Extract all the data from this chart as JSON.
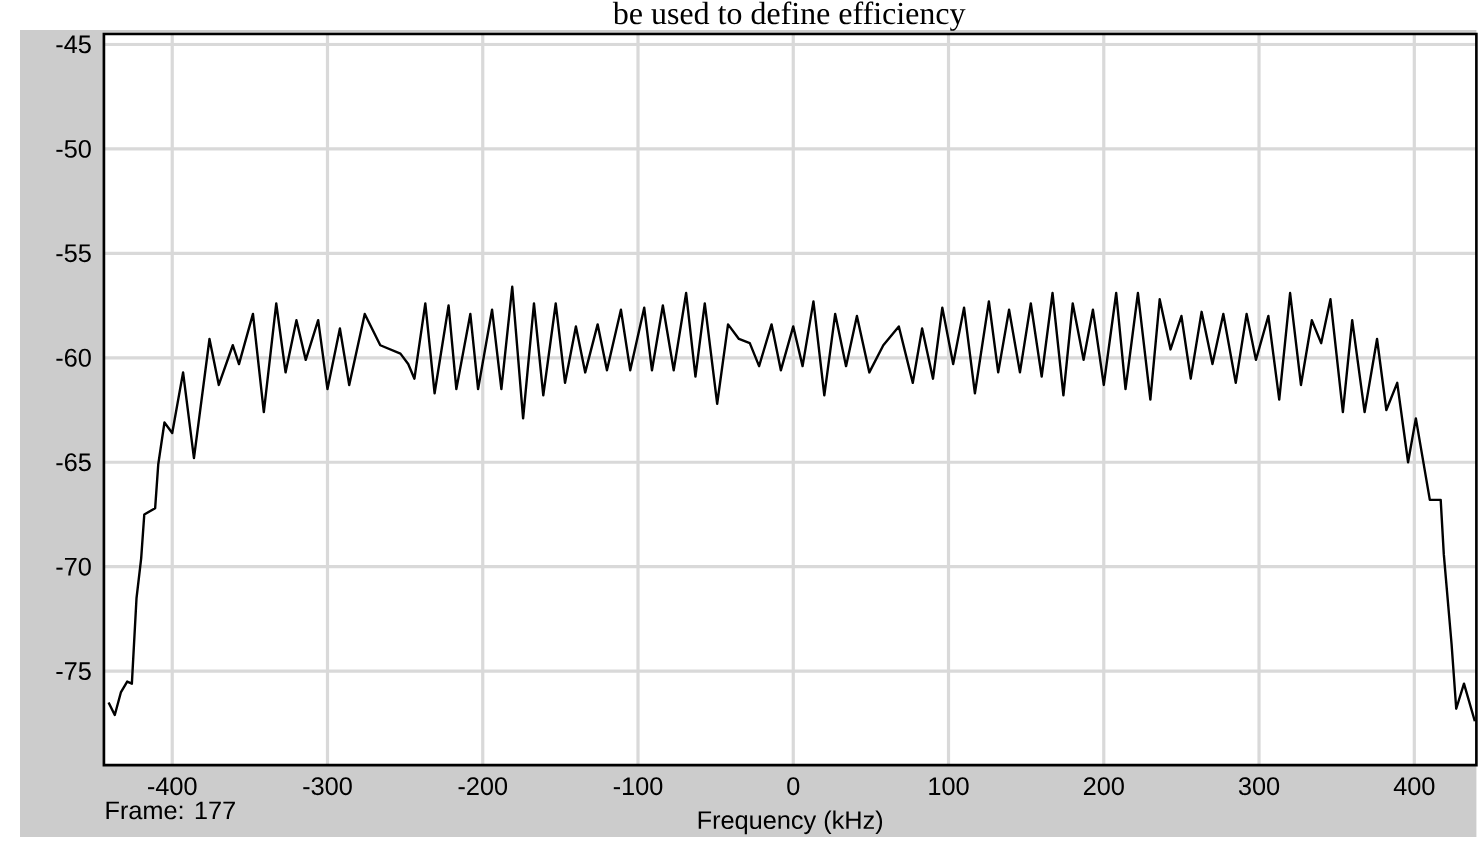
{
  "chart_data": {
    "type": "line",
    "xlabel": "Frequency (kHz)",
    "annotations": [
      "be used to define efficiency",
      "Frame: 177"
    ],
    "xlim": [
      -444,
      440
    ],
    "ylim": [
      -79.5,
      -44.5
    ],
    "xticks": [
      -400,
      -300,
      -200,
      -100,
      0,
      100,
      200,
      300,
      400
    ],
    "yticks": [
      -75,
      -70,
      -65,
      -60,
      -55,
      -50,
      -45
    ],
    "grid": true,
    "x": [
      -441,
      -437,
      -433,
      -429,
      -426,
      -423,
      -420,
      -418,
      -411,
      -409,
      -405,
      -400,
      -393,
      -386,
      -376,
      -370,
      -361,
      -357,
      -348,
      -341,
      -333,
      -327,
      -320,
      -314,
      -306,
      -300,
      -292,
      -286,
      -276,
      -266,
      -253,
      -248,
      -244,
      -237,
      -231,
      -222,
      -217,
      -208,
      -203,
      -194,
      -188,
      -181,
      -174,
      -167,
      -161,
      -153,
      -147,
      -140,
      -134,
      -126,
      -120,
      -111,
      -105,
      -96,
      -91,
      -84,
      -77,
      -69,
      -63,
      -57,
      -49,
      -42,
      -35,
      -28,
      -22,
      -14,
      -8,
      0,
      6,
      13,
      20,
      27,
      34,
      41,
      49,
      58,
      68,
      77,
      83,
      90,
      96,
      103,
      110,
      117,
      126,
      132,
      139,
      146,
      153,
      160,
      167,
      174,
      180,
      187,
      193,
      200,
      208,
      214,
      222,
      230,
      236,
      243,
      250,
      256,
      263,
      270,
      277,
      285,
      292,
      298,
      306,
      313,
      320,
      327,
      334,
      340,
      346,
      354,
      360,
      368,
      376,
      382,
      389,
      396,
      401,
      410,
      417,
      419,
      424,
      427,
      432,
      439
    ],
    "series": [
      {
        "color": "#000000",
        "values": [
          -76.5,
          -77.1,
          -76.0,
          -75.5,
          -75.6,
          -71.5,
          -69.6,
          -67.5,
          -67.2,
          -65.1,
          -63.1,
          -63.6,
          -60.7,
          -64.8,
          -59.1,
          -61.3,
          -59.4,
          -60.3,
          -57.9,
          -62.6,
          -57.4,
          -60.7,
          -58.2,
          -60.1,
          -58.2,
          -61.5,
          -58.6,
          -61.3,
          -57.9,
          -59.4,
          -59.8,
          -60.3,
          -61.0,
          -57.4,
          -61.7,
          -57.5,
          -61.5,
          -57.9,
          -61.5,
          -57.7,
          -61.5,
          -56.6,
          -62.9,
          -57.4,
          -61.8,
          -57.4,
          -61.2,
          -58.5,
          -60.7,
          -58.4,
          -60.6,
          -57.7,
          -60.6,
          -57.6,
          -60.6,
          -57.5,
          -60.6,
          -56.9,
          -60.9,
          -57.4,
          -62.2,
          -58.4,
          -59.1,
          -59.3,
          -60.4,
          -58.4,
          -60.6,
          -58.5,
          -60.4,
          -57.3,
          -61.8,
          -57.9,
          -60.4,
          -58.0,
          -60.7,
          -59.4,
          -58.5,
          -61.2,
          -58.6,
          -61.0,
          -57.6,
          -60.3,
          -57.6,
          -61.7,
          -57.3,
          -60.7,
          -57.7,
          -60.7,
          -57.4,
          -60.9,
          -56.9,
          -61.8,
          -57.4,
          -60.1,
          -57.7,
          -61.3,
          -56.9,
          -61.5,
          -56.9,
          -62.0,
          -57.2,
          -59.6,
          -58.0,
          -61.0,
          -57.8,
          -60.3,
          -57.9,
          -61.2,
          -57.9,
          -60.1,
          -58.0,
          -62.0,
          -56.9,
          -61.3,
          -58.2,
          -59.3,
          -57.2,
          -62.6,
          -58.2,
          -62.6,
          -59.1,
          -62.5,
          -61.2,
          -65.0,
          -62.9,
          -66.8,
          -66.8,
          -69.4,
          -73.7,
          -76.8,
          -75.6,
          -77.4
        ]
      }
    ]
  }
}
